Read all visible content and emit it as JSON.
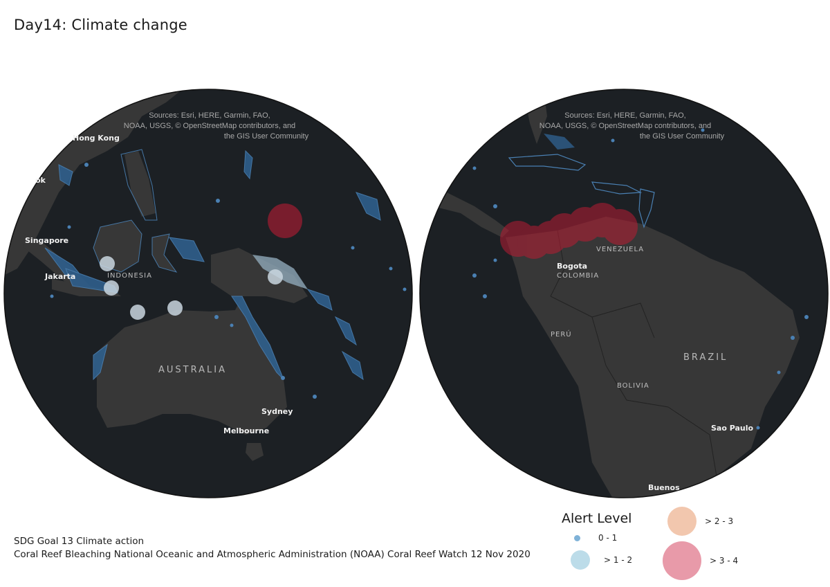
{
  "title": "Day14: Climate change",
  "left_map": {
    "credit_lines": [
      "Sources: Esri, HERE, Garmin, FAO,",
      "NOAA, USGS, © OpenStreetMap contributors, and",
      "the GIS User Community"
    ],
    "labels": {
      "hong_kong": "Hong Kong",
      "bangkok": "ok",
      "singapore": "Singapore",
      "jakarta": "Jakarta",
      "indonesia": "INDONESIA",
      "australia": "AUSTRALIA",
      "sydney": "Sydney",
      "melbourne": "Melbourne"
    }
  },
  "right_map": {
    "credit_lines": [
      "Sources: Esri, HERE, Garmin, FAO,",
      "NOAA, USGS, © OpenStreetMap contributors, and",
      "the GIS User Community"
    ],
    "labels": {
      "venezuela": "VENEZUELA",
      "bogota": "Bogota",
      "colombia": "COLOMBIA",
      "peru": "PERÚ",
      "brazil": "BRAZIL",
      "bolivia": "BOLIVIA",
      "sao_paulo": "Sao Paulo",
      "buenos_aires": "Buenos"
    }
  },
  "footer": {
    "line1": "SDG Goal 13 Climate action",
    "line2": "Coral Reef Bleaching National Oceanic and Atmospheric Administration (NOAA) Coral Reef Watch 12 Nov 2020"
  },
  "legend": {
    "title": "Alert Level",
    "items": [
      {
        "label": "0 - 1",
        "color": "#7fb2d8"
      },
      {
        "label": "> 1 - 2",
        "color": "#bcdce9"
      },
      {
        "label": "> 2 - 3",
        "color": "#f2c7ae"
      },
      {
        "label": "> 3 - 4",
        "color": "#e89aa9"
      }
    ]
  },
  "colors": {
    "ocean": "#1c2024",
    "land": "#373737",
    "reef": "#2f5f8c",
    "alert_low": "#c9d6df",
    "alert_high": "#b81c33"
  }
}
